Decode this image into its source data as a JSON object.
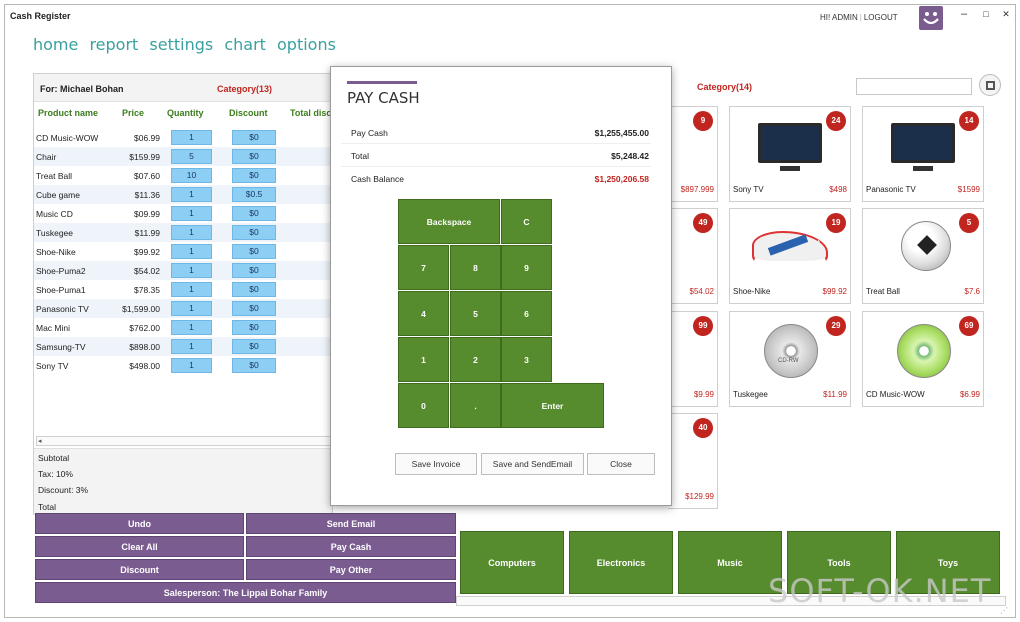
{
  "window": {
    "title": "Cash Register",
    "user_greeting": "HI! ADMIN",
    "logout": "LOGOUT",
    "minimize": "–",
    "maximize": "□",
    "close": "✕"
  },
  "nav": [
    "home",
    "report",
    "settings",
    "chart",
    "options"
  ],
  "order": {
    "customer": "For: Michael Bohan",
    "category": "Category(13)",
    "columns": [
      "Product name",
      "Price",
      "Quantity",
      "Discount",
      "Total disc"
    ],
    "rows": [
      {
        "name": "CD Music-WOW",
        "price": "$06.99",
        "qty": "1",
        "disc": "$0"
      },
      {
        "name": "Chair",
        "price": "$159.99",
        "qty": "5",
        "disc": "$0"
      },
      {
        "name": "Treat Ball",
        "price": "$07.60",
        "qty": "10",
        "disc": "$0"
      },
      {
        "name": "Cube game",
        "price": "$11.36",
        "qty": "1",
        "disc": "$0.5"
      },
      {
        "name": "Music CD",
        "price": "$09.99",
        "qty": "1",
        "disc": "$0"
      },
      {
        "name": "Tuskegee",
        "price": "$11.99",
        "qty": "1",
        "disc": "$0"
      },
      {
        "name": "Shoe-Nike",
        "price": "$99.92",
        "qty": "1",
        "disc": "$0"
      },
      {
        "name": "Shoe-Puma2",
        "price": "$54.02",
        "qty": "1",
        "disc": "$0"
      },
      {
        "name": "Shoe-Puma1",
        "price": "$78.35",
        "qty": "1",
        "disc": "$0"
      },
      {
        "name": "Panasonic TV",
        "price": "$1,599.00",
        "qty": "1",
        "disc": "$0"
      },
      {
        "name": "Mac Mini",
        "price": "$762.00",
        "qty": "1",
        "disc": "$0"
      },
      {
        "name": "Samsung-TV",
        "price": "$898.00",
        "qty": "1",
        "disc": "$0"
      },
      {
        "name": "Sony TV",
        "price": "$498.00",
        "qty": "1",
        "disc": "$0"
      }
    ],
    "totals": [
      "Subtotal",
      "Tax: 10%",
      "Discount: 3%",
      "Total"
    ]
  },
  "actions": {
    "undo": "Undo",
    "send_email": "Send Email",
    "clear_all": "Clear All",
    "pay_cash": "Pay Cash",
    "discount": "Discount",
    "pay_other": "Pay Other",
    "salesperson": "Salesperson: The Lippai Bohar Family"
  },
  "products": {
    "category": "Category(14)",
    "search_placeholder": "",
    "visible_partial": [
      {
        "badge": "9",
        "price": "$897.999"
      },
      {
        "badge": "49",
        "price": "$54.02"
      },
      {
        "badge": "99",
        "price": "$9.99"
      },
      {
        "badge": "40",
        "price": "$129.99"
      }
    ],
    "cards": [
      {
        "badge": "24",
        "name": "Sony TV",
        "price": "$498",
        "icon": "tv"
      },
      {
        "badge": "14",
        "name": "Panasonic TV",
        "price": "$1599",
        "icon": "tv"
      },
      {
        "badge": "19",
        "name": "Shoe-Nike",
        "price": "$99.92",
        "icon": "shoe"
      },
      {
        "badge": "5",
        "name": "Treat Ball",
        "price": "$7.6",
        "icon": "ball"
      },
      {
        "badge": "29",
        "name": "Tuskegee",
        "price": "$11.99",
        "icon": "disc"
      },
      {
        "badge": "69",
        "name": "CD Music-WOW",
        "price": "$6.99",
        "icon": "disc-green"
      }
    ],
    "disc_label": "CD-RW"
  },
  "categories": [
    "Computers",
    "Electronics",
    "Music",
    "Tools",
    "Toys"
  ],
  "modal": {
    "title": "PAY CASH",
    "pay_cash_label": "Pay Cash",
    "pay_cash_value": "$1,255,455.00",
    "total_label": "Total",
    "total_value": "$5,248.42",
    "balance_label": "Cash Balance",
    "balance_value": "$1,250,206.58",
    "keys": {
      "backspace": "Backspace",
      "c": "C",
      "k7": "7",
      "k8": "8",
      "k9": "9",
      "k4": "4",
      "k5": "5",
      "k6": "6",
      "k1": "1",
      "k2": "2",
      "k3": "3",
      "k0": "0",
      "dot": ".",
      "enter": "Enter"
    },
    "save_invoice": "Save Invoice",
    "save_email": "Save and SendEmail",
    "close": "Close"
  },
  "watermark": "SOFT-OK.NET",
  "colors": {
    "purple": "#7a5c91",
    "green": "#578c2e",
    "red": "#c0251f",
    "teal": "#3aa0a0",
    "qty_blue": "#8dcef4"
  }
}
